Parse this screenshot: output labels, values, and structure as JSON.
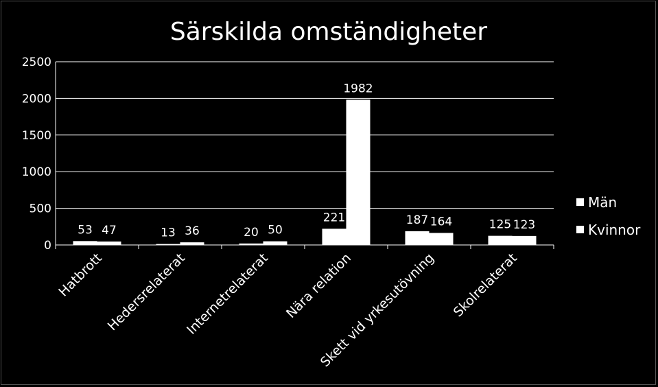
{
  "chart_data": {
    "type": "bar",
    "title": "Särskilda omständigheter",
    "xlabel": "",
    "ylabel": "",
    "categories": [
      "Hatbrott",
      "Hedersrelaterat",
      "Internetrelaterat",
      "Nära relation",
      "Skett vid yrkesutövning",
      "Skolrelaterat"
    ],
    "series": [
      {
        "name": "Män",
        "values": [
          53,
          13,
          20,
          221,
          187,
          125
        ]
      },
      {
        "name": "Kvinnor",
        "values": [
          47,
          36,
          50,
          1982,
          164,
          123
        ]
      }
    ],
    "ylim": [
      0,
      2500
    ],
    "yticks": [
      "0",
      "500",
      "1000",
      "1500",
      "2000",
      "2500"
    ],
    "grid": true,
    "legend_position": "right",
    "data_labels": true,
    "colors": {
      "background": "#000000",
      "bars": "#ffffff",
      "text": "#ffffff",
      "gridlines": "#ffffff",
      "border": "#555555"
    }
  }
}
